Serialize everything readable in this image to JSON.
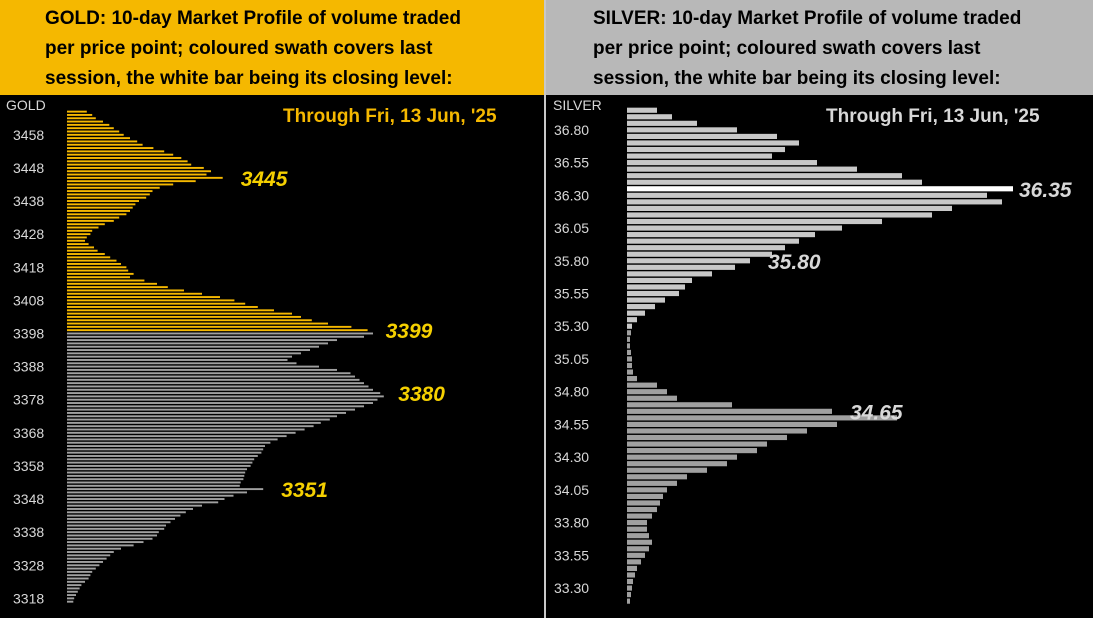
{
  "chart_data": [
    {
      "type": "bar",
      "orientation": "horizontal",
      "instrument": "GOLD",
      "title_lines": [
        "GOLD:  10-day Market Profile of volume traded",
        "per price point; coloured swath covers last",
        "session, the white bar being its closing level:"
      ],
      "subtitle": "Through Fri, 13 Jun, '25",
      "axis_label": "GOLD",
      "yticks": [
        "3458",
        "3448",
        "3438",
        "3428",
        "3418",
        "3408",
        "3398",
        "3388",
        "3378",
        "3368",
        "3358",
        "3348",
        "3338",
        "3328",
        "3318"
      ],
      "ylim": [
        3316,
        3467
      ],
      "price_step": 1,
      "colors": {
        "session": "#f5b800",
        "prior": "#a0a0a0",
        "header": "#f5b800",
        "label": "#f5d000"
      },
      "last_session_range": [
        3399,
        3465
      ],
      "annotations": [
        {
          "text": "3445",
          "price": 3445
        },
        {
          "text": "3399",
          "price": 3399
        },
        {
          "text": "3380",
          "price": 3380
        },
        {
          "text": "3351",
          "price": 3351
        }
      ],
      "prices": [
        3465,
        3464,
        3463,
        3462,
        3461,
        3460,
        3459,
        3458,
        3457,
        3456,
        3455,
        3454,
        3453,
        3452,
        3451,
        3450,
        3449,
        3448,
        3447,
        3446,
        3445,
        3444,
        3443,
        3442,
        3441,
        3440,
        3439,
        3438,
        3437,
        3436,
        3435,
        3434,
        3433,
        3432,
        3431,
        3430,
        3429,
        3428,
        3427,
        3426,
        3425,
        3424,
        3423,
        3422,
        3421,
        3420,
        3419,
        3418,
        3417,
        3416,
        3415,
        3414,
        3413,
        3412,
        3411,
        3410,
        3409,
        3408,
        3407,
        3406,
        3405,
        3404,
        3403,
        3402,
        3401,
        3400,
        3399,
        3398,
        3397,
        3396,
        3395,
        3394,
        3393,
        3392,
        3391,
        3390,
        3389,
        3388,
        3387,
        3386,
        3385,
        3384,
        3383,
        3382,
        3381,
        3380,
        3379,
        3378,
        3377,
        3376,
        3375,
        3374,
        3373,
        3372,
        3371,
        3370,
        3369,
        3368,
        3367,
        3366,
        3365,
        3364,
        3363,
        3362,
        3361,
        3360,
        3359,
        3358,
        3357,
        3356,
        3355,
        3354,
        3353,
        3352,
        3351,
        3350,
        3349,
        3348,
        3347,
        3346,
        3345,
        3344,
        3343,
        3342,
        3341,
        3340,
        3339,
        3338,
        3337,
        3336,
        3335,
        3334,
        3333,
        3332,
        3331,
        3330,
        3329,
        3328,
        3327,
        3326,
        3325,
        3324,
        3323,
        3322,
        3321,
        3320,
        3319,
        3318,
        3317
      ],
      "volumes": [
        22,
        28,
        32,
        40,
        47,
        52,
        58,
        63,
        70,
        78,
        84,
        96,
        108,
        118,
        127,
        134,
        138,
        152,
        160,
        155,
        173,
        143,
        118,
        103,
        95,
        92,
        88,
        80,
        76,
        73,
        70,
        66,
        58,
        52,
        42,
        35,
        28,
        26,
        22,
        20,
        24,
        30,
        34,
        42,
        48,
        55,
        60,
        66,
        68,
        74,
        70,
        86,
        100,
        112,
        130,
        150,
        170,
        186,
        198,
        212,
        230,
        250,
        260,
        272,
        290,
        316,
        334,
        340,
        330,
        300,
        290,
        280,
        270,
        260,
        250,
        245,
        255,
        280,
        300,
        315,
        320,
        325,
        330,
        335,
        340,
        348,
        352,
        345,
        340,
        330,
        320,
        310,
        300,
        292,
        282,
        274,
        264,
        254,
        244,
        234,
        226,
        220,
        218,
        216,
        212,
        208,
        206,
        204,
        200,
        198,
        197,
        196,
        193,
        192,
        218,
        200,
        185,
        175,
        168,
        150,
        140,
        132,
        126,
        120,
        115,
        110,
        108,
        102,
        100,
        95,
        85,
        74,
        60,
        52,
        48,
        44,
        40,
        36,
        32,
        28,
        26,
        24,
        20,
        16,
        14,
        12,
        10,
        8,
        7
      ]
    },
    {
      "type": "bar",
      "orientation": "horizontal",
      "instrument": "SILVER",
      "title_lines": [
        "SILVER:  10-day Market Profile of volume traded",
        "per price point; coloured swath covers last",
        "session, the white bar being its closing level:"
      ],
      "subtitle": "Through Fri, 13 Jun, '25",
      "axis_label": "SILVER",
      "yticks": [
        "36.80",
        "36.55",
        "36.30",
        "36.05",
        "35.80",
        "35.55",
        "35.30",
        "35.05",
        "34.80",
        "34.55",
        "34.30",
        "34.05",
        "33.80",
        "33.55",
        "33.30"
      ],
      "ylim": [
        33.14,
        36.99
      ],
      "price_step": 0.05,
      "colors": {
        "session": "#c8c8c8",
        "prior": "#a0a0a0",
        "close": "#ffffff",
        "header": "#b8b8b8",
        "label": "#d8d8d8"
      },
      "close": 36.35,
      "annotations": [
        {
          "text": "36.35",
          "price": 36.35
        },
        {
          "text": "35.80",
          "price": 35.8
        },
        {
          "text": "34.65",
          "price": 34.65
        }
      ],
      "prices": [
        36.95,
        36.9,
        36.85,
        36.8,
        36.75,
        36.7,
        36.65,
        36.6,
        36.55,
        36.5,
        36.45,
        36.4,
        36.35,
        36.3,
        36.25,
        36.2,
        36.15,
        36.1,
        36.05,
        36.0,
        35.95,
        35.9,
        35.85,
        35.8,
        35.75,
        35.7,
        35.65,
        35.6,
        35.55,
        35.5,
        35.45,
        35.4,
        35.35,
        35.3,
        35.25,
        35.2,
        35.15,
        35.1,
        35.05,
        35.0,
        34.95,
        34.9,
        34.85,
        34.8,
        34.75,
        34.7,
        34.65,
        34.6,
        34.55,
        34.5,
        34.45,
        34.4,
        34.35,
        34.3,
        34.25,
        34.2,
        34.15,
        34.1,
        34.05,
        34.0,
        33.95,
        33.9,
        33.85,
        33.8,
        33.75,
        33.7,
        33.65,
        33.6,
        33.55,
        33.5,
        33.45,
        33.4,
        33.35,
        33.3,
        33.25,
        33.2
      ],
      "volumes": [
        30,
        45,
        70,
        110,
        150,
        172,
        158,
        145,
        190,
        230,
        275,
        295,
        310,
        360,
        375,
        325,
        305,
        255,
        215,
        188,
        172,
        158,
        145,
        123,
        108,
        85,
        65,
        58,
        52,
        38,
        28,
        18,
        10,
        5,
        4,
        3,
        3,
        4,
        5,
        5,
        6,
        10,
        30,
        40,
        50,
        105,
        205,
        270,
        210,
        180,
        160,
        140,
        130,
        110,
        100,
        80,
        60,
        50,
        40,
        36,
        33,
        30,
        25,
        20,
        20,
        22,
        25,
        22,
        18,
        14,
        10,
        8,
        6,
        5,
        4,
        3
      ]
    }
  ]
}
